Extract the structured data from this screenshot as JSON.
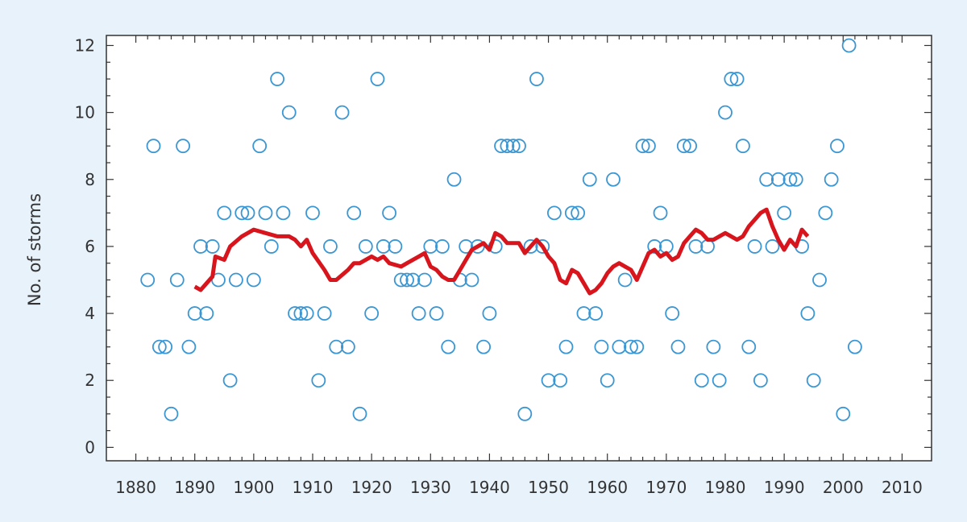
{
  "chart_data": {
    "type": "scatter",
    "title": "",
    "xlabel": "",
    "ylabel": "No. of storms",
    "xlim": [
      1875,
      2015
    ],
    "ylim": [
      -0.4,
      12.3
    ],
    "xticks": [
      1880,
      1890,
      1900,
      1910,
      1920,
      1930,
      1940,
      1950,
      1960,
      1970,
      1980,
      1990,
      2000,
      2010
    ],
    "yticks": [
      0,
      2,
      4,
      6,
      8,
      10,
      12
    ],
    "grid": false,
    "colors": {
      "points": "#3a97d4",
      "line": "#d8141c",
      "background": "#e8f2fb",
      "plot_bg": "#ffffff",
      "axis": "#333333"
    },
    "series": [
      {
        "kind": "scatter",
        "points": [
          [
            1882,
            5
          ],
          [
            1883,
            9
          ],
          [
            1884,
            3
          ],
          [
            1885,
            3
          ],
          [
            1886,
            1
          ],
          [
            1887,
            5
          ],
          [
            1888,
            9
          ],
          [
            1889,
            3
          ],
          [
            1890,
            4
          ],
          [
            1891,
            6
          ],
          [
            1892,
            4
          ],
          [
            1893,
            6
          ],
          [
            1894,
            5
          ],
          [
            1895,
            7
          ],
          [
            1896,
            2
          ],
          [
            1897,
            5
          ],
          [
            1898,
            7
          ],
          [
            1899,
            7
          ],
          [
            1900,
            5
          ],
          [
            1901,
            9
          ],
          [
            1902,
            7
          ],
          [
            1903,
            6
          ],
          [
            1904,
            11
          ],
          [
            1905,
            7
          ],
          [
            1906,
            10
          ],
          [
            1907,
            4
          ],
          [
            1908,
            4
          ],
          [
            1909,
            4
          ],
          [
            1910,
            7
          ],
          [
            1911,
            2
          ],
          [
            1912,
            4
          ],
          [
            1913,
            6
          ],
          [
            1914,
            3
          ],
          [
            1915,
            10
          ],
          [
            1916,
            3
          ],
          [
            1917,
            7
          ],
          [
            1918,
            1
          ],
          [
            1919,
            6
          ],
          [
            1920,
            4
          ],
          [
            1921,
            11
          ],
          [
            1922,
            6
          ],
          [
            1923,
            7
          ],
          [
            1924,
            6
          ],
          [
            1925,
            5
          ],
          [
            1926,
            5
          ],
          [
            1927,
            5
          ],
          [
            1928,
            4
          ],
          [
            1929,
            5
          ],
          [
            1930,
            6
          ],
          [
            1931,
            4
          ],
          [
            1932,
            6
          ],
          [
            1933,
            3
          ],
          [
            1934,
            8
          ],
          [
            1935,
            5
          ],
          [
            1936,
            6
          ],
          [
            1937,
            5
          ],
          [
            1938,
            6
          ],
          [
            1939,
            3
          ],
          [
            1940,
            4
          ],
          [
            1941,
            6
          ],
          [
            1942,
            9
          ],
          [
            1943,
            9
          ],
          [
            1944,
            9
          ],
          [
            1945,
            9
          ],
          [
            1946,
            1
          ],
          [
            1947,
            6
          ],
          [
            1948,
            11
          ],
          [
            1949,
            6
          ],
          [
            1950,
            2
          ],
          [
            1951,
            7
          ],
          [
            1952,
            2
          ],
          [
            1953,
            3
          ],
          [
            1954,
            7
          ],
          [
            1955,
            7
          ],
          [
            1956,
            4
          ],
          [
            1957,
            8
          ],
          [
            1958,
            4
          ],
          [
            1959,
            3
          ],
          [
            1960,
            2
          ],
          [
            1961,
            8
          ],
          [
            1962,
            3
          ],
          [
            1963,
            5
          ],
          [
            1964,
            3
          ],
          [
            1965,
            3
          ],
          [
            1966,
            9
          ],
          [
            1967,
            9
          ],
          [
            1968,
            6
          ],
          [
            1969,
            7
          ],
          [
            1970,
            6
          ],
          [
            1971,
            4
          ],
          [
            1972,
            3
          ],
          [
            1973,
            9
          ],
          [
            1974,
            9
          ],
          [
            1975,
            6
          ],
          [
            1976,
            2
          ],
          [
            1977,
            6
          ],
          [
            1978,
            3
          ],
          [
            1979,
            2
          ],
          [
            1980,
            10
          ],
          [
            1981,
            11
          ],
          [
            1982,
            11
          ],
          [
            1983,
            9
          ],
          [
            1984,
            3
          ],
          [
            1985,
            6
          ],
          [
            1986,
            2
          ],
          [
            1987,
            8
          ],
          [
            1988,
            6
          ],
          [
            1989,
            8
          ],
          [
            1990,
            7
          ],
          [
            1991,
            8
          ],
          [
            1992,
            8
          ],
          [
            1993,
            6
          ],
          [
            1994,
            4
          ],
          [
            1995,
            2
          ],
          [
            1996,
            5
          ],
          [
            1997,
            7
          ],
          [
            1998,
            8
          ],
          [
            1999,
            9
          ],
          [
            2000,
            1
          ],
          [
            2001,
            12
          ],
          [
            2002,
            3
          ]
        ]
      },
      {
        "kind": "line",
        "points": [
          [
            1890,
            4.8
          ],
          [
            1891,
            4.7
          ],
          [
            1892,
            4.9
          ],
          [
            1893,
            5.1
          ],
          [
            1893.5,
            5.7
          ],
          [
            1895,
            5.6
          ],
          [
            1896,
            6.0
          ],
          [
            1898,
            6.3
          ],
          [
            1900,
            6.5
          ],
          [
            1902,
            6.4
          ],
          [
            1904,
            6.3
          ],
          [
            1906,
            6.3
          ],
          [
            1907,
            6.2
          ],
          [
            1908,
            6.0
          ],
          [
            1909,
            6.2
          ],
          [
            1910,
            5.8
          ],
          [
            1912,
            5.3
          ],
          [
            1913,
            5.0
          ],
          [
            1914,
            5.0
          ],
          [
            1916,
            5.3
          ],
          [
            1917,
            5.5
          ],
          [
            1918,
            5.5
          ],
          [
            1920,
            5.7
          ],
          [
            1921,
            5.6
          ],
          [
            1922,
            5.7
          ],
          [
            1923,
            5.5
          ],
          [
            1925,
            5.4
          ],
          [
            1926,
            5.5
          ],
          [
            1928,
            5.7
          ],
          [
            1929,
            5.8
          ],
          [
            1930,
            5.4
          ],
          [
            1931,
            5.3
          ],
          [
            1932,
            5.1
          ],
          [
            1933,
            5.0
          ],
          [
            1934,
            5.0
          ],
          [
            1935,
            5.3
          ],
          [
            1937,
            5.9
          ],
          [
            1939,
            6.1
          ],
          [
            1940,
            5.9
          ],
          [
            1941,
            6.4
          ],
          [
            1942,
            6.3
          ],
          [
            1943,
            6.1
          ],
          [
            1945,
            6.1
          ],
          [
            1946,
            5.8
          ],
          [
            1947,
            6.0
          ],
          [
            1948,
            6.2
          ],
          [
            1949,
            6.0
          ],
          [
            1950,
            5.7
          ],
          [
            1951,
            5.5
          ],
          [
            1952,
            5.0
          ],
          [
            1953,
            4.9
          ],
          [
            1954,
            5.3
          ],
          [
            1955,
            5.2
          ],
          [
            1956,
            4.9
          ],
          [
            1957,
            4.6
          ],
          [
            1958,
            4.7
          ],
          [
            1959,
            4.9
          ],
          [
            1960,
            5.2
          ],
          [
            1961,
            5.4
          ],
          [
            1962,
            5.5
          ],
          [
            1963,
            5.4
          ],
          [
            1964,
            5.3
          ],
          [
            1965,
            5.0
          ],
          [
            1966,
            5.4
          ],
          [
            1967,
            5.8
          ],
          [
            1968,
            5.9
          ],
          [
            1969,
            5.7
          ],
          [
            1970,
            5.8
          ],
          [
            1971,
            5.6
          ],
          [
            1972,
            5.7
          ],
          [
            1973,
            6.1
          ],
          [
            1974,
            6.3
          ],
          [
            1975,
            6.5
          ],
          [
            1976,
            6.4
          ],
          [
            1977,
            6.2
          ],
          [
            1978,
            6.2
          ],
          [
            1979,
            6.3
          ],
          [
            1980,
            6.4
          ],
          [
            1981,
            6.3
          ],
          [
            1982,
            6.2
          ],
          [
            1983,
            6.3
          ],
          [
            1984,
            6.6
          ],
          [
            1985,
            6.8
          ],
          [
            1986,
            7.0
          ],
          [
            1987,
            7.1
          ],
          [
            1988,
            6.6
          ],
          [
            1989,
            6.2
          ],
          [
            1990,
            5.9
          ],
          [
            1991,
            6.2
          ],
          [
            1992,
            6.0
          ],
          [
            1993,
            6.5
          ],
          [
            1994,
            6.3
          ]
        ]
      }
    ]
  }
}
